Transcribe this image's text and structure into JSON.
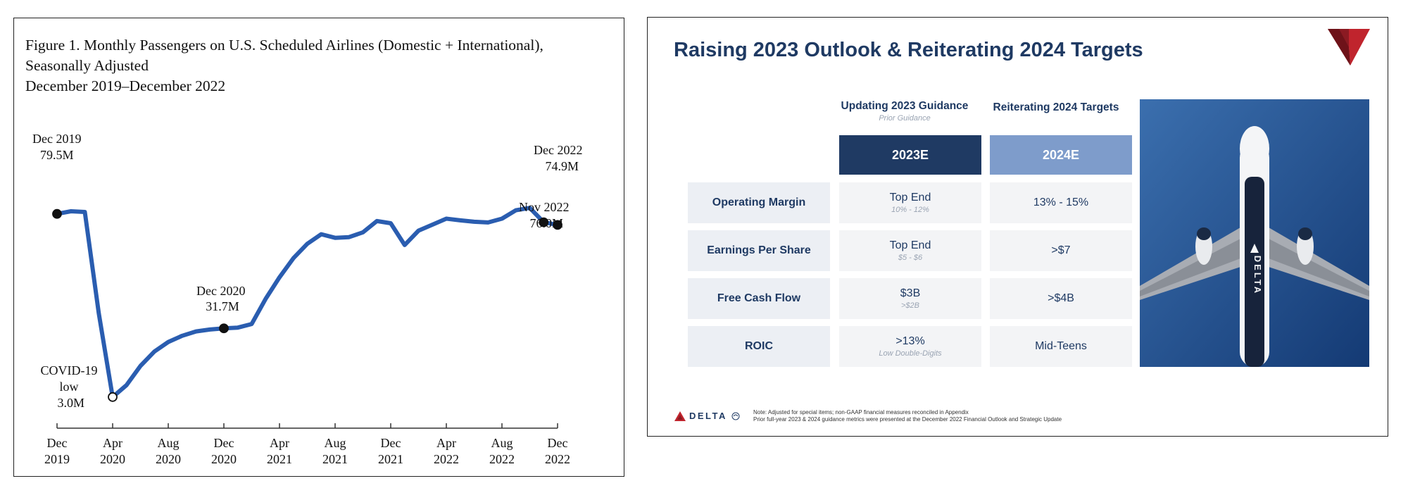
{
  "chart": {
    "title_lines": [
      "Figure 1. Monthly Passengers on U.S. Scheduled Airlines (Domestic + International),",
      "Seasonally Adjusted",
      "December 2019–December 2022"
    ],
    "annotations": {
      "dec2019": [
        "Dec 2019",
        "79.5M"
      ],
      "covid": [
        "COVID-19",
        "low",
        "3.0M"
      ],
      "dec2020": [
        "Dec 2020",
        "31.7M"
      ],
      "dec2022": [
        "Dec 2022",
        "74.9M"
      ],
      "nov2022": [
        "Nov 2022",
        "76.0M"
      ]
    },
    "line_color": "#2a5db0"
  },
  "chart_data": {
    "type": "line",
    "title": "Figure 1. Monthly Passengers on U.S. Scheduled Airlines (Domestic + International), Seasonally Adjusted December 2019–December 2022",
    "xlabel": "",
    "ylabel": "",
    "x": [
      "Dec 2019",
      "Jan 2020",
      "Feb 2020",
      "Mar 2020",
      "Apr 2020",
      "May 2020",
      "Jun 2020",
      "Jul 2020",
      "Aug 2020",
      "Sep 2020",
      "Oct 2020",
      "Nov 2020",
      "Dec 2020",
      "Jan 2021",
      "Feb 2021",
      "Mar 2021",
      "Apr 2021",
      "May 2021",
      "Jun 2021",
      "Jul 2021",
      "Aug 2021",
      "Sep 2021",
      "Oct 2021",
      "Nov 2021",
      "Dec 2021",
      "Jan 2022",
      "Feb 2022",
      "Mar 2022",
      "Apr 2022",
      "May 2022",
      "Jun 2022",
      "Jul 2022",
      "Aug 2022",
      "Sep 2022",
      "Oct 2022",
      "Nov 2022",
      "Dec 2022"
    ],
    "x_ticks": [
      [
        "Dec",
        "2019"
      ],
      [
        "Apr",
        "2020"
      ],
      [
        "Aug",
        "2020"
      ],
      [
        "Dec",
        "2020"
      ],
      [
        "Apr",
        "2021"
      ],
      [
        "Aug",
        "2021"
      ],
      [
        "Dec",
        "2021"
      ],
      [
        "Apr",
        "2022"
      ],
      [
        "Aug",
        "2022"
      ],
      [
        "Dec",
        "2022"
      ]
    ],
    "x_tick_index": [
      0,
      4,
      8,
      12,
      16,
      20,
      24,
      28,
      32,
      36
    ],
    "series": [
      {
        "values": [
          79.5,
          80.6,
          80.3,
          38.0,
          3.0,
          8.0,
          16.0,
          22.0,
          26.0,
          28.6,
          30.4,
          31.2,
          31.7,
          32.0,
          33.5,
          44.0,
          53.0,
          61.0,
          67.0,
          71.0,
          69.5,
          69.8,
          71.8,
          76.5,
          75.6,
          66.5,
          72.5,
          75.0,
          77.5,
          76.8,
          76.2,
          75.9,
          77.5,
          81.0,
          82.0,
          76.0,
          74.9
        ]
      }
    ],
    "ylim": [
      -5,
      100
    ],
    "markers": [
      {
        "index": 0,
        "style": "filled"
      },
      {
        "index": 4,
        "style": "open"
      },
      {
        "index": 12,
        "style": "filled"
      },
      {
        "index": 35,
        "style": "filled"
      },
      {
        "index": 36,
        "style": "filled"
      }
    ]
  },
  "slide": {
    "title": "Raising 2023 Outlook & Reiterating 2024 Targets",
    "col1_header": "Updating 2023 Guidance",
    "col1_sub": "Prior Guidance",
    "col2_header": "Reiterating 2024 Targets",
    "col1_cap": "2023E",
    "col2_cap": "2024E",
    "rows": [
      {
        "label": "Operating Margin",
        "v2023": "Top End",
        "prior": "10% - 12%",
        "v2024": "13% - 15%"
      },
      {
        "label": "Earnings Per Share",
        "v2023": "Top End",
        "prior": "$5 - $6",
        "v2024": ">$7"
      },
      {
        "label": "Free Cash Flow",
        "v2023": "$3B",
        "prior": ">$2B",
        "v2024": ">$4B"
      },
      {
        "label": "ROIC",
        "v2023": ">13%",
        "prior": "Low Double-Digits",
        "v2024": "Mid-Teens"
      }
    ],
    "plane_livery": "DELTA",
    "footer_logo": "DELTA",
    "footer_note_1": "Note: Adjusted for special items; non-GAAP financial measures reconciled in Appendix",
    "footer_note_2": "Prior full-year 2023 & 2024 guidance metrics were presented at the December 2022 Financial Outlook and Strategic Update",
    "colors": {
      "navy": "#1f3a63",
      "light_blue": "#7e9ccb",
      "brand_red": "#c0242d"
    }
  }
}
